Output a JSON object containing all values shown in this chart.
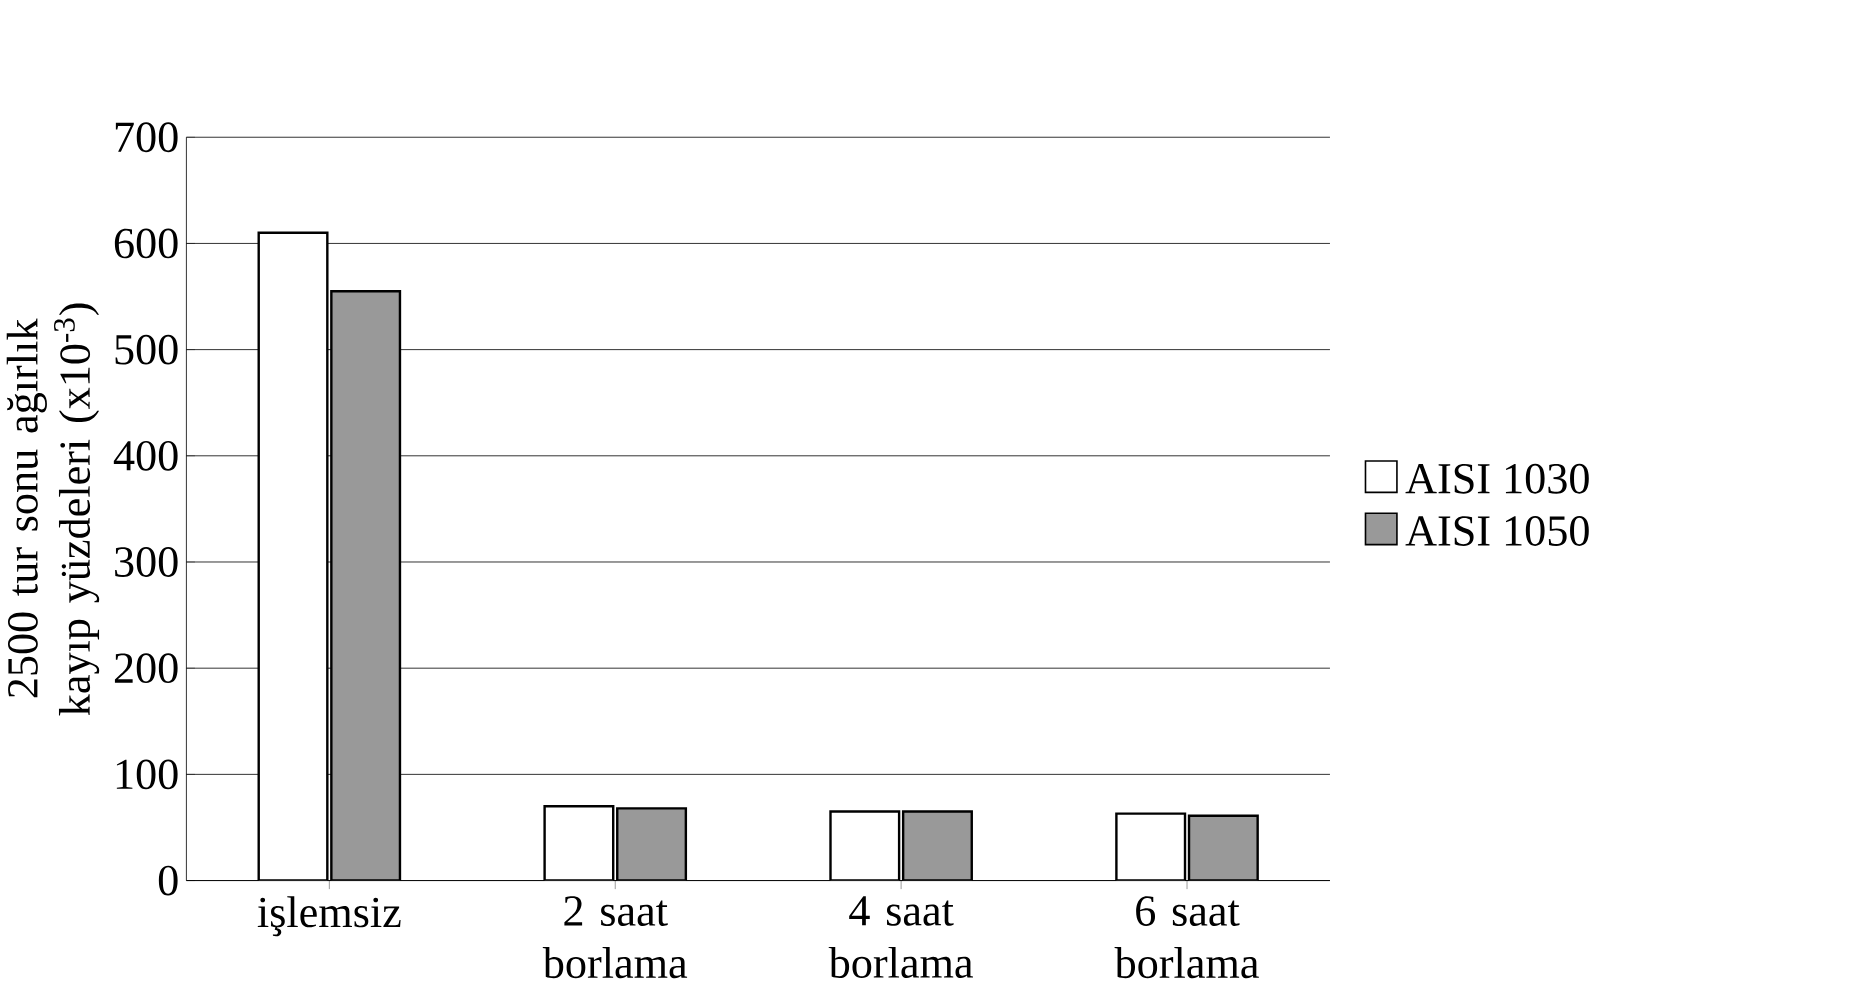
{
  "chart_data": {
    "type": "bar",
    "ylabel": "2500 tur sonu ağırlık kayıp yüzdeleri (x10$^{-3}$)",
    "categories": [
      "işlemsiz",
      "2 saat borlama",
      "4 saat borlama",
      "6 saat borlama"
    ],
    "series": [
      {
        "name": "AISI 1030",
        "color": "#ffffff",
        "values": [
          610,
          70,
          65,
          63
        ]
      },
      {
        "name": "AISI 1050",
        "color": "#999999",
        "values": [
          555,
          68,
          65,
          61
        ]
      }
    ],
    "ylim": [
      0,
      700
    ],
    "yticks": [
      0,
      100,
      200,
      300,
      400,
      500,
      600,
      700
    ],
    "grid": "y",
    "legend": "right"
  }
}
